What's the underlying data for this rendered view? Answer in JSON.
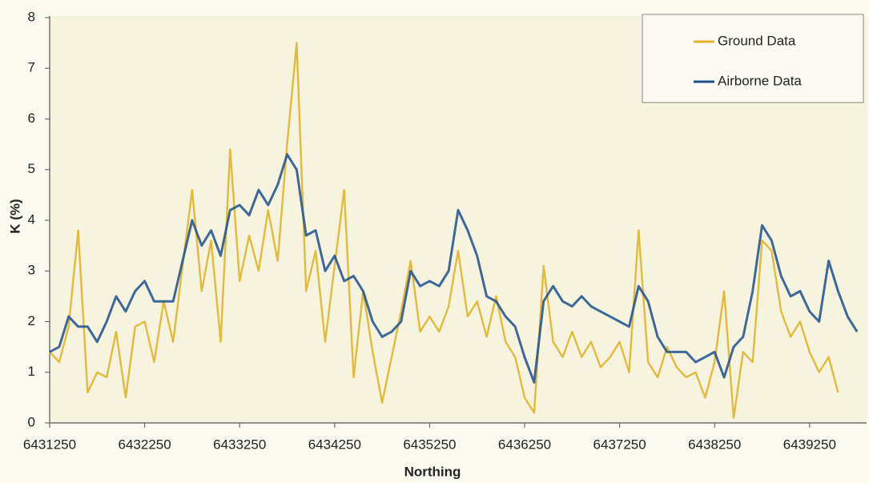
{
  "chart_data": {
    "type": "line",
    "x_label": "Northing",
    "y_label": "K (%)",
    "x": [
      6431250,
      6431350,
      6431450,
      6431550,
      6431650,
      6431750,
      6431850,
      6431950,
      6432050,
      6432150,
      6432250,
      6432350,
      6432450,
      6432550,
      6432650,
      6432750,
      6432850,
      6432950,
      6433050,
      6433150,
      6433250,
      6433350,
      6433450,
      6433550,
      6433650,
      6433750,
      6433850,
      6433950,
      6434050,
      6434150,
      6434250,
      6434350,
      6434450,
      6434550,
      6434650,
      6434750,
      6434850,
      6434950,
      6435050,
      6435150,
      6435250,
      6435350,
      6435450,
      6435550,
      6435650,
      6435750,
      6435850,
      6435950,
      6436050,
      6436150,
      6436250,
      6436350,
      6436450,
      6436550,
      6436650,
      6436750,
      6436850,
      6436950,
      6437050,
      6437150,
      6437250,
      6437350,
      6437450,
      6437550,
      6437650,
      6437750,
      6437850,
      6437950,
      6438050,
      6438150,
      6438250,
      6438350,
      6438450,
      6438550,
      6438650,
      6438750,
      6438850,
      6438950,
      6439050,
      6439150,
      6439250,
      6439350,
      6439450,
      6439550,
      6439650,
      6439750
    ],
    "series": [
      {
        "name": "Ground Data",
        "color": "#e2b42a",
        "values": [
          1.4,
          1.2,
          1.9,
          3.8,
          0.6,
          1.0,
          0.9,
          1.8,
          0.5,
          1.9,
          2.0,
          1.2,
          2.4,
          1.6,
          3.1,
          4.6,
          2.6,
          3.6,
          1.6,
          5.4,
          2.8,
          3.7,
          3.0,
          4.2,
          3.2,
          5.5,
          7.5,
          2.6,
          3.4,
          1.6,
          3.1,
          4.6,
          0.9,
          2.6,
          1.4,
          0.4,
          1.3,
          2.2,
          3.2,
          1.8,
          2.1,
          1.8,
          2.3,
          3.4,
          2.1,
          2.4,
          1.7,
          2.5,
          1.6,
          1.3,
          0.5,
          0.2,
          3.1,
          1.6,
          1.3,
          1.8,
          1.3,
          1.6,
          1.1,
          1.3,
          1.6,
          1.0,
          3.8,
          1.2,
          0.9,
          1.5,
          1.1,
          0.9,
          1.0,
          0.5,
          1.2,
          2.6,
          0.1,
          1.4,
          1.2,
          3.6,
          3.4,
          2.2,
          1.7,
          2.0,
          1.4,
          1.0,
          1.3,
          0.6,
          null,
          null
        ]
      },
      {
        "name": "Airborne Data",
        "color": "#1f4f8e",
        "values": [
          1.4,
          1.5,
          2.1,
          1.9,
          1.9,
          1.6,
          2.0,
          2.5,
          2.2,
          2.6,
          2.8,
          2.4,
          2.4,
          2.4,
          3.2,
          4.0,
          3.5,
          3.8,
          3.3,
          4.2,
          4.3,
          4.1,
          4.6,
          4.3,
          4.7,
          5.3,
          5.0,
          3.7,
          3.8,
          3.0,
          3.3,
          2.8,
          2.9,
          2.6,
          2.0,
          1.7,
          1.8,
          2.0,
          3.0,
          2.7,
          2.8,
          2.7,
          3.0,
          4.2,
          3.8,
          3.3,
          2.5,
          2.4,
          2.1,
          1.9,
          1.3,
          0.8,
          2.4,
          2.7,
          2.4,
          2.3,
          2.5,
          2.3,
          2.2,
          2.1,
          2.0,
          1.9,
          2.7,
          2.4,
          1.7,
          1.4,
          1.4,
          1.4,
          1.2,
          1.3,
          1.4,
          0.9,
          1.5,
          1.7,
          2.6,
          3.9,
          3.6,
          2.9,
          2.5,
          2.6,
          2.2,
          2.0,
          3.2,
          2.6,
          2.1,
          1.8
        ]
      }
    ],
    "xlim": [
      6431250,
      6439850
    ],
    "xticks": [
      6431250,
      6432250,
      6433250,
      6434250,
      6435250,
      6436250,
      6437250,
      6438250,
      6439250
    ],
    "ylim": [
      0,
      8
    ],
    "yticks": [
      0,
      1,
      2,
      3,
      4,
      5,
      6,
      7,
      8
    ],
    "grid": false,
    "legend": "upper right"
  }
}
